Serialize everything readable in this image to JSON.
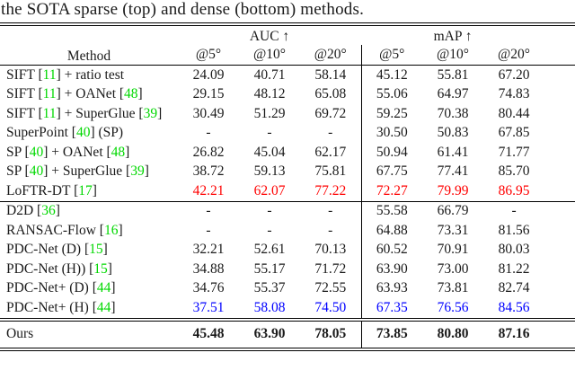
{
  "caption": "the SOTA sparse (top) and dense (bottom) methods.",
  "colors": {
    "citation_green": "#00d800",
    "best_red": "#ff0000",
    "second_blue": "#0000ff",
    "rule_black": "#000000"
  },
  "table": {
    "method_header": "Method",
    "groups": [
      {
        "label": "AUC ↑"
      },
      {
        "label": "mAP ↑"
      }
    ],
    "subheaders": [
      "@5°",
      "@10°",
      "@20°",
      "@5°",
      "@10°",
      "@20°"
    ],
    "sections": [
      {
        "name": "sparse",
        "rows": [
          {
            "method": "SIFT [11] + ratio test",
            "values": [
              "24.09",
              "40.71",
              "58.14",
              "45.12",
              "55.81",
              "67.20"
            ],
            "highlight": null
          },
          {
            "method": "SIFT [11] + OANet [48]",
            "values": [
              "29.15",
              "48.12",
              "65.08",
              "55.06",
              "64.97",
              "74.83"
            ],
            "highlight": null
          },
          {
            "method": "SIFT [11] + SuperGlue [39]",
            "values": [
              "30.49",
              "51.29",
              "69.72",
              "59.25",
              "70.38",
              "80.44"
            ],
            "highlight": null
          },
          {
            "method": "SuperPoint [40] (SP)",
            "values": [
              "-",
              "-",
              "-",
              "30.50",
              "50.83",
              "67.85"
            ],
            "highlight": null
          },
          {
            "method": "SP [40] + OANet [48]",
            "values": [
              "26.82",
              "45.04",
              "62.17",
              "50.94",
              "61.41",
              "71.77"
            ],
            "highlight": null
          },
          {
            "method": "SP [40] + SuperGlue [39]",
            "values": [
              "38.72",
              "59.13",
              "75.81",
              "67.75",
              "77.41",
              "85.70"
            ],
            "highlight": null
          },
          {
            "method": "LoFTR-DT [17]",
            "values": [
              "42.21",
              "62.07",
              "77.22",
              "72.27",
              "79.99",
              "86.95"
            ],
            "highlight": "red"
          }
        ]
      },
      {
        "name": "dense",
        "rows": [
          {
            "method": "D2D [36]",
            "values": [
              "-",
              "-",
              "-",
              "55.58",
              "66.79",
              "-"
            ],
            "highlight": null
          },
          {
            "method": "RANSAC-Flow [16]",
            "values": [
              "-",
              "-",
              "-",
              "64.88",
              "73.31",
              "81.56"
            ],
            "highlight": null
          },
          {
            "method": "PDC-Net (D) [15]",
            "values": [
              "32.21",
              "52.61",
              "70.13",
              "60.52",
              "70.91",
              "80.03"
            ],
            "highlight": null
          },
          {
            "method": "PDC-Net (H)) [15]",
            "values": [
              "34.88",
              "55.17",
              "71.72",
              "63.90",
              "73.00",
              "81.22"
            ],
            "highlight": null
          },
          {
            "method": "PDC-Net+ (D) [44]",
            "values": [
              "34.76",
              "55.37",
              "72.55",
              "63.93",
              "73.81",
              "82.74"
            ],
            "highlight": null
          },
          {
            "method": "PDC-Net+ (H) [44]",
            "values": [
              "37.51",
              "58.08",
              "74.50",
              "67.35",
              "76.56",
              "84.56"
            ],
            "highlight": "blue"
          }
        ]
      }
    ],
    "ours": {
      "method": "Ours",
      "values": [
        "45.48",
        "63.90",
        "78.05",
        "73.85",
        "80.80",
        "87.16"
      ],
      "highlight": "bold"
    }
  }
}
